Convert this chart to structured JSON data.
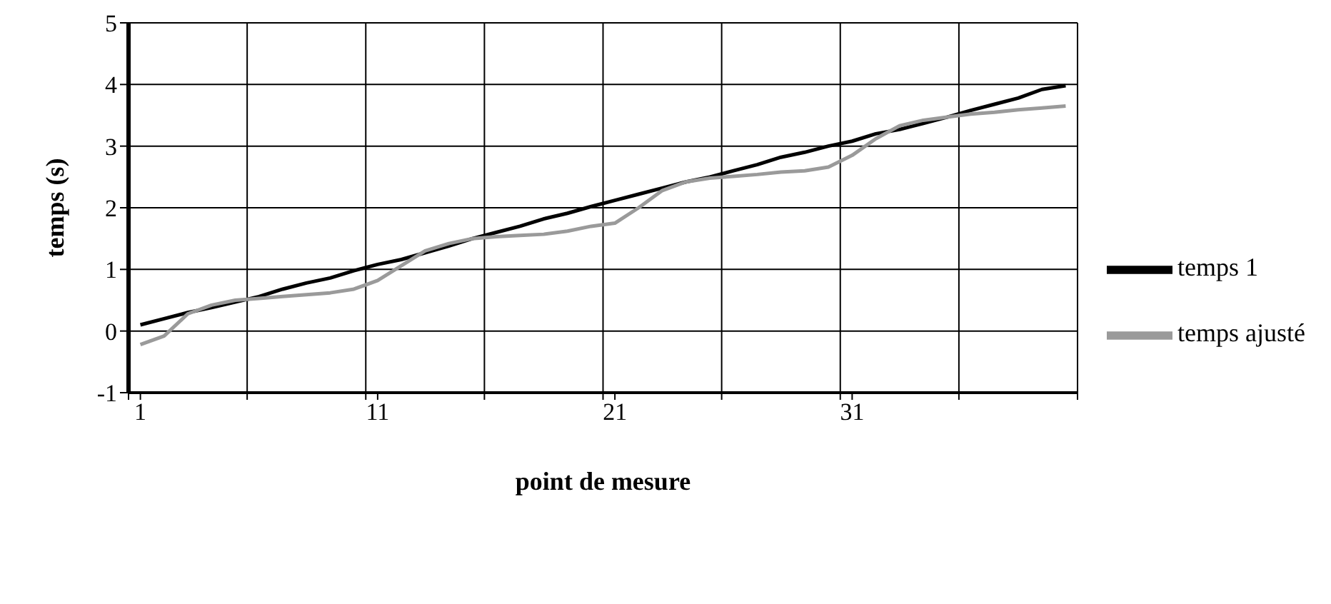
{
  "chart_data": {
    "type": "line",
    "xlabel": "point de mesure",
    "ylabel": "temps (s)",
    "x": [
      1,
      2,
      3,
      4,
      5,
      6,
      7,
      8,
      9,
      10,
      11,
      12,
      13,
      14,
      15,
      16,
      17,
      18,
      19,
      20,
      21,
      22,
      23,
      24,
      25,
      26,
      27,
      28,
      29,
      30,
      31,
      32,
      33,
      34,
      35,
      36,
      37,
      38,
      39,
      40
    ],
    "series": [
      {
        "name": "temps 1",
        "color": "#000000",
        "values": [
          0.1,
          0.2,
          0.3,
          0.38,
          0.47,
          0.56,
          0.68,
          0.78,
          0.86,
          0.98,
          1.08,
          1.16,
          1.27,
          1.38,
          1.5,
          1.6,
          1.7,
          1.82,
          1.91,
          2.02,
          2.12,
          2.22,
          2.32,
          2.42,
          2.5,
          2.6,
          2.7,
          2.82,
          2.9,
          3.0,
          3.08,
          3.2,
          3.27,
          3.37,
          3.47,
          3.58,
          3.68,
          3.78,
          3.92,
          3.98
        ]
      },
      {
        "name": "temps ajusté",
        "color": "#9a9a9a",
        "values": [
          -0.22,
          -0.08,
          0.28,
          0.42,
          0.5,
          0.53,
          0.56,
          0.59,
          0.62,
          0.68,
          0.82,
          1.06,
          1.3,
          1.42,
          1.5,
          1.53,
          1.55,
          1.57,
          1.62,
          1.7,
          1.75,
          2.0,
          2.28,
          2.42,
          2.48,
          2.51,
          2.54,
          2.58,
          2.6,
          2.66,
          2.85,
          3.12,
          3.33,
          3.42,
          3.47,
          3.52,
          3.55,
          3.59,
          3.62,
          3.65
        ]
      }
    ],
    "xlim": [
      0.5,
      40.5
    ],
    "xticks": [
      {
        "value": 0.5,
        "label": null
      },
      1,
      {
        "value": 5.5,
        "label": null
      },
      {
        "value": 10.5,
        "label": null
      },
      11,
      {
        "value": 15.5,
        "label": null
      },
      {
        "value": 20.5,
        "label": null
      },
      21,
      {
        "value": 25.5,
        "label": null
      },
      {
        "value": 30.5,
        "label": null
      },
      31,
      {
        "value": 35.5,
        "label": null
      },
      {
        "value": 40.5,
        "label": null
      }
    ],
    "ylim": [
      -1,
      5
    ],
    "yticks": [
      -1,
      0,
      1,
      2,
      3,
      4,
      5
    ],
    "grid": true,
    "legend": "right",
    "marker": "none",
    "line_style": "solid"
  }
}
